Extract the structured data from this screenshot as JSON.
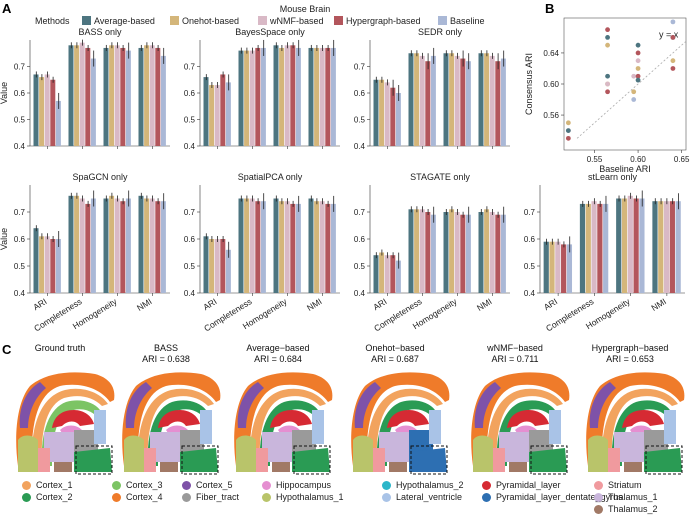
{
  "panel_labels": {
    "a": "A",
    "b": "B",
    "c": "C"
  },
  "figure_title": "Mouse Brain",
  "methods_legend": {
    "title": "Methods",
    "items": [
      {
        "name": "Average-based",
        "color": "#4d7580"
      },
      {
        "name": "Onehot-based",
        "color": "#d4b67a"
      },
      {
        "name": "wNMF-based",
        "color": "#d9b9c6"
      },
      {
        "name": "Hypergraph-based",
        "color": "#b3565c"
      },
      {
        "name": "Baseline",
        "color": "#aab8d6"
      }
    ]
  },
  "chart_data": [
    {
      "type": "bar",
      "title": "BASS only",
      "ylabel": "Value",
      "ylim": [
        0.4,
        0.8
      ],
      "ticks": [
        0.4,
        0.5,
        0.6,
        0.7
      ],
      "categories": [
        "ARI",
        "Completeness",
        "Homogeneity",
        "NMI"
      ],
      "series": [
        {
          "name": "Average-based",
          "values": [
            0.67,
            0.78,
            0.77,
            0.77
          ]
        },
        {
          "name": "Onehot-based",
          "values": [
            0.66,
            0.78,
            0.78,
            0.78
          ]
        },
        {
          "name": "wNMF-based",
          "values": [
            0.67,
            0.79,
            0.78,
            0.78
          ]
        },
        {
          "name": "Hypergraph-based",
          "values": [
            0.65,
            0.77,
            0.77,
            0.77
          ]
        },
        {
          "name": "Baseline",
          "values": [
            0.57,
            0.73,
            0.76,
            0.74
          ]
        }
      ]
    },
    {
      "type": "bar",
      "title": "BayesSpace only",
      "ylim": [
        0.4,
        0.8
      ],
      "ticks": [
        0.4,
        0.5,
        0.6,
        0.7
      ],
      "categories": [
        "ARI",
        "Completeness",
        "Homogeneity",
        "NMI"
      ],
      "series": [
        {
          "name": "Average-based",
          "values": [
            0.66,
            0.76,
            0.78,
            0.77
          ]
        },
        {
          "name": "Onehot-based",
          "values": [
            0.63,
            0.76,
            0.77,
            0.77
          ]
        },
        {
          "name": "wNMF-based",
          "values": [
            0.63,
            0.76,
            0.78,
            0.77
          ]
        },
        {
          "name": "Hypergraph-based",
          "values": [
            0.67,
            0.77,
            0.78,
            0.77
          ]
        },
        {
          "name": "Baseline",
          "values": [
            0.64,
            0.77,
            0.77,
            0.77
          ]
        }
      ]
    },
    {
      "type": "bar",
      "title": "SEDR only",
      "ylim": [
        0.4,
        0.8
      ],
      "ticks": [
        0.4,
        0.5,
        0.6,
        0.7
      ],
      "categories": [
        "ARI",
        "Completeness",
        "Homogeneity",
        "NMI"
      ],
      "series": [
        {
          "name": "Average-based",
          "values": [
            0.65,
            0.75,
            0.75,
            0.75
          ]
        },
        {
          "name": "Onehot-based",
          "values": [
            0.65,
            0.75,
            0.75,
            0.75
          ]
        },
        {
          "name": "wNMF-based",
          "values": [
            0.64,
            0.74,
            0.74,
            0.74
          ]
        },
        {
          "name": "Hypergraph-based",
          "values": [
            0.62,
            0.72,
            0.73,
            0.72
          ]
        },
        {
          "name": "Baseline",
          "values": [
            0.6,
            0.74,
            0.72,
            0.73
          ]
        }
      ]
    },
    {
      "type": "bar",
      "title": "SpaGCN only",
      "ylabel": "Value",
      "ylim": [
        0.4,
        0.8
      ],
      "ticks": [
        0.4,
        0.5,
        0.6,
        0.7
      ],
      "categories": [
        "ARI",
        "Completeness",
        "Homogeneity",
        "NMI"
      ],
      "series": [
        {
          "name": "Average-based",
          "values": [
            0.64,
            0.76,
            0.75,
            0.76
          ]
        },
        {
          "name": "Onehot-based",
          "values": [
            0.61,
            0.76,
            0.76,
            0.75
          ]
        },
        {
          "name": "wNMF-based",
          "values": [
            0.61,
            0.75,
            0.75,
            0.75
          ]
        },
        {
          "name": "Hypergraph-based",
          "values": [
            0.6,
            0.73,
            0.74,
            0.74
          ]
        },
        {
          "name": "Baseline",
          "values": [
            0.6,
            0.75,
            0.75,
            0.74
          ]
        }
      ]
    },
    {
      "type": "bar",
      "title": "SpatialPCA only",
      "ylim": [
        0.4,
        0.8
      ],
      "ticks": [
        0.4,
        0.5,
        0.6,
        0.7
      ],
      "categories": [
        "ARI",
        "Completeness",
        "Homogeneity",
        "NMI"
      ],
      "series": [
        {
          "name": "Average-based",
          "values": [
            0.61,
            0.75,
            0.75,
            0.75
          ]
        },
        {
          "name": "Onehot-based",
          "values": [
            0.6,
            0.75,
            0.74,
            0.74
          ]
        },
        {
          "name": "wNMF-based",
          "values": [
            0.6,
            0.75,
            0.74,
            0.74
          ]
        },
        {
          "name": "Hypergraph-based",
          "values": [
            0.6,
            0.74,
            0.73,
            0.73
          ]
        },
        {
          "name": "Baseline",
          "values": [
            0.56,
            0.74,
            0.73,
            0.73
          ]
        }
      ]
    },
    {
      "type": "bar",
      "title": "STAGATE only",
      "ylim": [
        0.4,
        0.8
      ],
      "ticks": [
        0.4,
        0.5,
        0.6,
        0.7
      ],
      "categories": [
        "ARI",
        "Completeness",
        "Homogeneity",
        "NMI"
      ],
      "series": [
        {
          "name": "Average-based",
          "values": [
            0.54,
            0.71,
            0.7,
            0.7
          ]
        },
        {
          "name": "Onehot-based",
          "values": [
            0.55,
            0.71,
            0.71,
            0.71
          ]
        },
        {
          "name": "wNMF-based",
          "values": [
            0.54,
            0.71,
            0.7,
            0.7
          ]
        },
        {
          "name": "Hypergraph-based",
          "values": [
            0.54,
            0.7,
            0.69,
            0.69
          ]
        },
        {
          "name": "Baseline",
          "values": [
            0.52,
            0.69,
            0.69,
            0.69
          ]
        }
      ]
    },
    {
      "type": "bar",
      "title": "stLearn only",
      "ylim": [
        0.4,
        0.8
      ],
      "ticks": [
        0.4,
        0.5,
        0.6,
        0.7
      ],
      "categories": [
        "ARI",
        "Completeness",
        "Homogeneity",
        "NMI"
      ],
      "series": [
        {
          "name": "Average-based",
          "values": [
            0.59,
            0.73,
            0.75,
            0.74
          ]
        },
        {
          "name": "Onehot-based",
          "values": [
            0.59,
            0.73,
            0.75,
            0.74
          ]
        },
        {
          "name": "wNMF-based",
          "values": [
            0.59,
            0.74,
            0.76,
            0.74
          ]
        },
        {
          "name": "Hypergraph-based",
          "values": [
            0.58,
            0.73,
            0.75,
            0.74
          ]
        },
        {
          "name": "Baseline",
          "values": [
            0.58,
            0.73,
            0.75,
            0.74
          ]
        }
      ]
    },
    {
      "type": "scatter",
      "xlabel": "Baseline ARI",
      "ylabel": "Consensus ARI",
      "xlim": [
        0.515,
        0.655
      ],
      "ylim": [
        0.515,
        0.685
      ],
      "xticks": [
        0.55,
        0.6,
        0.65
      ],
      "yticks": [
        0.56,
        0.6,
        0.64
      ],
      "annotation": "y = x",
      "points": [
        {
          "x": 0.52,
          "y": 0.55,
          "color": "#d4b67a"
        },
        {
          "x": 0.52,
          "y": 0.54,
          "color": "#d9b9c6"
        },
        {
          "x": 0.52,
          "y": 0.54,
          "color": "#4d7580"
        },
        {
          "x": 0.52,
          "y": 0.53,
          "color": "#b3565c"
        },
        {
          "x": 0.565,
          "y": 0.67,
          "color": "#b3565c"
        },
        {
          "x": 0.565,
          "y": 0.66,
          "color": "#4d7580"
        },
        {
          "x": 0.565,
          "y": 0.65,
          "color": "#d4b67a"
        },
        {
          "x": 0.565,
          "y": 0.61,
          "color": "#4d7580"
        },
        {
          "x": 0.565,
          "y": 0.6,
          "color": "#d4b67a"
        },
        {
          "x": 0.565,
          "y": 0.6,
          "color": "#d9b9c6"
        },
        {
          "x": 0.565,
          "y": 0.59,
          "color": "#b3565c"
        },
        {
          "x": 0.595,
          "y": 0.61,
          "color": "#d9b9c6"
        },
        {
          "x": 0.595,
          "y": 0.59,
          "color": "#d4b67a"
        },
        {
          "x": 0.595,
          "y": 0.58,
          "color": "#aab8d6"
        },
        {
          "x": 0.6,
          "y": 0.65,
          "color": "#4d7580"
        },
        {
          "x": 0.6,
          "y": 0.64,
          "color": "#b3565c"
        },
        {
          "x": 0.6,
          "y": 0.63,
          "color": "#d9b9c6"
        },
        {
          "x": 0.6,
          "y": 0.62,
          "color": "#d4b67a"
        },
        {
          "x": 0.6,
          "y": 0.61,
          "color": "#b3565c"
        },
        {
          "x": 0.6,
          "y": 0.605,
          "color": "#4d7580"
        },
        {
          "x": 0.64,
          "y": 0.68,
          "color": "#aab8d6"
        },
        {
          "x": 0.64,
          "y": 0.66,
          "color": "#4d7580"
        },
        {
          "x": 0.64,
          "y": 0.66,
          "color": "#b3565c"
        },
        {
          "x": 0.64,
          "y": 0.63,
          "color": "#d4b67a"
        },
        {
          "x": 0.64,
          "y": 0.62,
          "color": "#b3565c"
        }
      ]
    }
  ],
  "panel_c": {
    "maps": [
      {
        "title": "Ground truth",
        "ari": ""
      },
      {
        "title": "BASS",
        "ari": "ARI = 0.638"
      },
      {
        "title": "Average−based",
        "ari": "ARI = 0.684"
      },
      {
        "title": "Onehot−based",
        "ari": "ARI = 0.687"
      },
      {
        "title": "wNMF−based",
        "ari": "ARI = 0.711"
      },
      {
        "title": "Hypergraph−based",
        "ari": "ARI = 0.653"
      }
    ],
    "legend": [
      {
        "label": "Cortex_1",
        "color": "#f2a35e"
      },
      {
        "label": "Cortex_2",
        "color": "#2a9b54"
      },
      {
        "label": "Cortex_3",
        "color": "#7cc464"
      },
      {
        "label": "Cortex_4",
        "color": "#ef7b2a"
      },
      {
        "label": "Cortex_5",
        "color": "#7e52a8"
      },
      {
        "label": "Fiber_tract",
        "color": "#9a9a9a"
      },
      {
        "label": "Hippocampus",
        "color": "#e58fd1"
      },
      {
        "label": "Hypothalamus_1",
        "color": "#b9c46a"
      },
      {
        "label": "Hypothalamus_2",
        "color": "#2cb6c9"
      },
      {
        "label": "Lateral_ventricle",
        "color": "#a9c3e7"
      },
      {
        "label": "Pyramidal_layer",
        "color": "#d62a33"
      },
      {
        "label": "Pyramidal_layer_dentate_gyrus",
        "color": "#2d6fb2"
      },
      {
        "label": "Striatum",
        "color": "#f09a9e"
      },
      {
        "label": "Thalamus_1",
        "color": "#c9b6dc"
      },
      {
        "label": "Thalamus_2",
        "color": "#a17966"
      }
    ]
  }
}
